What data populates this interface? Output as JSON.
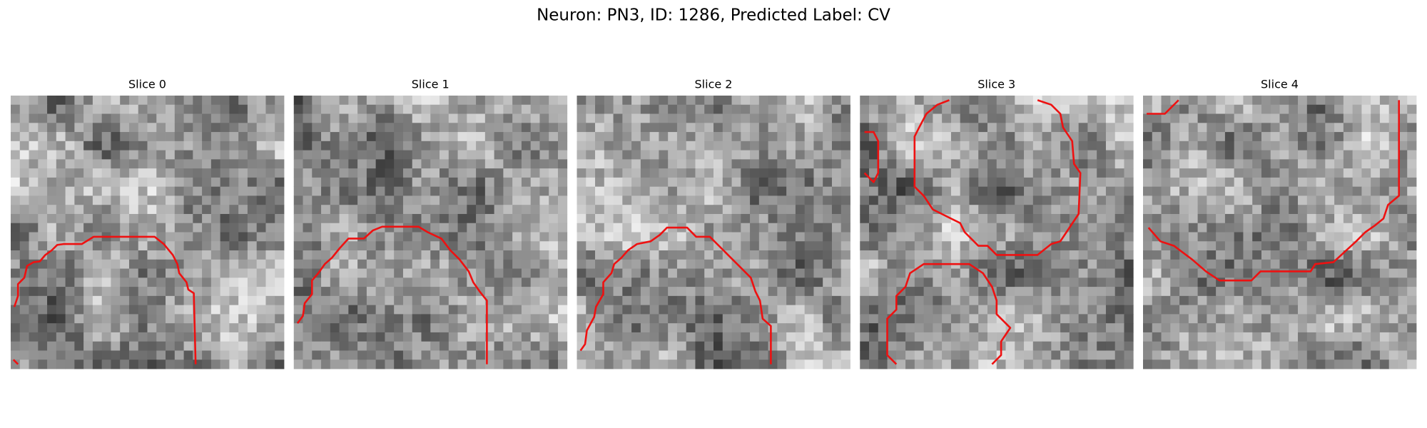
{
  "title": "Neuron: PN3, ID: 1286, Predicted Label: CV",
  "panels": [
    {
      "title": "Slice 0"
    },
    {
      "title": "Slice 1"
    },
    {
      "title": "Slice 2"
    },
    {
      "title": "Slice 3"
    },
    {
      "title": "Slice 4"
    }
  ]
}
